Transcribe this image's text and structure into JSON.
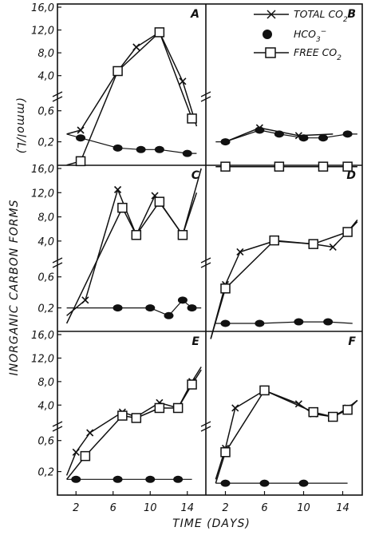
{
  "figure": {
    "ylabel": "INORGANIC CARBON FORMS",
    "yunit": "(mmol/L)",
    "xlabel": "TIME (DAYS)"
  },
  "legend": {
    "total": "TOTAL CO",
    "total_sub": "2",
    "hco3": "HCO",
    "hco3_sub": "3",
    "hco3_sup": "−",
    "free": "FREE CO",
    "free_sub": "2"
  },
  "colors": {
    "ink": "#111111",
    "background": "#ffffff"
  },
  "chart_data": [
    {
      "panel": "A",
      "type": "line",
      "yticks_upper": [
        "4,0",
        "8,0",
        "12,0",
        "16,0"
      ],
      "yticks_lower": [
        "0,2",
        "0,6"
      ],
      "xticks": [
        "2",
        "6",
        "10",
        "14"
      ],
      "series": [
        {
          "name": "TOTAL CO2",
          "x": [
            1,
            2.5,
            6.5,
            8.5,
            11,
            13.5,
            15
          ],
          "y": [
            0.3,
            0.35,
            4.8,
            9.0,
            11.6,
            3.0,
            0.4
          ]
        },
        {
          "name": "HCO3-",
          "x": [
            1,
            2.5,
            6.5,
            9,
            11,
            14,
            15
          ],
          "y": [
            0.3,
            0.25,
            0.12,
            0.1,
            0.1,
            0.05,
            0.05
          ]
        },
        {
          "name": "FREE CO2",
          "x": [
            1,
            2.5,
            6.5,
            11,
            14.5,
            15
          ],
          "y": [
            -0.1,
            -0.05,
            4.8,
            11.6,
            0.5,
            0.45
          ]
        }
      ]
    },
    {
      "panel": "B",
      "type": "line",
      "yticks_upper": [],
      "yticks_lower": [],
      "xticks": [
        "2",
        "6",
        "10",
        "14"
      ],
      "series": [
        {
          "name": "TOTAL CO2",
          "x": [
            2,
            5.5,
            9.5,
            13
          ],
          "y": [
            0.2,
            0.38,
            0.28,
            0.3
          ]
        },
        {
          "name": "HCO3-",
          "x": [
            1,
            2,
            5.5,
            7.5,
            10,
            12,
            14.5,
            15.5
          ],
          "y": [
            0.2,
            0.2,
            0.35,
            0.3,
            0.25,
            0.25,
            0.3,
            0.3
          ]
        },
        {
          "name": "FREE CO2",
          "x": [
            1,
            2,
            7.5,
            12,
            14.5,
            15.5
          ],
          "y": [
            -0.12,
            -0.12,
            -0.12,
            -0.12,
            -0.12,
            -0.12
          ]
        }
      ]
    },
    {
      "panel": "C",
      "type": "line",
      "yticks_upper": [
        "4,0",
        "8,0",
        "12,0",
        "16,0"
      ],
      "yticks_lower": [
        "0,2",
        "0,6"
      ],
      "xticks": [
        "2",
        "6",
        "10",
        "14"
      ],
      "series": [
        {
          "name": "TOTAL CO2",
          "x": [
            1,
            3,
            6.5,
            8.5,
            10.5,
            13.5,
            15.5
          ],
          "y": [
            0.1,
            0.3,
            12.5,
            5.0,
            11.5,
            5.0,
            16.0
          ]
        },
        {
          "name": "HCO3-",
          "x": [
            1,
            6.5,
            10,
            12,
            13.5,
            14.5,
            15.5
          ],
          "y": [
            0.2,
            0.2,
            0.2,
            0.1,
            0.3,
            0.2,
            0.2
          ]
        },
        {
          "name": "FREE CO2",
          "x": [
            1,
            7,
            8.5,
            11,
            13.5,
            15
          ],
          "y": [
            0.0,
            9.5,
            5.0,
            10.5,
            5.0,
            12.0
          ]
        }
      ]
    },
    {
      "panel": "D",
      "type": "line",
      "yticks_upper": [],
      "yticks_lower": [],
      "xticks": [
        "2",
        "6",
        "10",
        "14"
      ],
      "series": [
        {
          "name": "TOTAL CO2",
          "x": [
            0.5,
            2,
            3.5,
            7,
            11,
            13,
            14.5,
            15.5
          ],
          "y": [
            -0.2,
            0.5,
            2.2,
            4.0,
            3.5,
            3.0,
            5.5,
            7.5
          ]
        },
        {
          "name": "HCO3-",
          "x": [
            1,
            2,
            5.5,
            9.5,
            12.5,
            15
          ],
          "y": [
            0.0,
            0.0,
            0.0,
            0.02,
            0.02,
            0.0
          ]
        },
        {
          "name": "FREE CO2",
          "x": [
            0.5,
            2,
            7,
            11,
            14.5,
            15.5
          ],
          "y": [
            -0.2,
            0.45,
            4.1,
            3.5,
            5.5,
            7.2
          ]
        }
      ]
    },
    {
      "panel": "E",
      "type": "line",
      "yticks_upper": [
        "4,0",
        "8,0",
        "12,0",
        "16,0"
      ],
      "yticks_lower": [
        "0,2",
        "0,6"
      ],
      "xticks": [
        "2",
        "6",
        "10",
        "14"
      ],
      "series": [
        {
          "name": "TOTAL CO2",
          "x": [
            1,
            2,
            3.5,
            7,
            8.5,
            11,
            13,
            14.5,
            15.5
          ],
          "y": [
            0.15,
            0.45,
            0.7,
            2.8,
            2.0,
            4.4,
            3.5,
            8.0,
            10.5
          ]
        },
        {
          "name": "HCO3-",
          "x": [
            1,
            2,
            6.5,
            10,
            13,
            14.5
          ],
          "y": [
            0.1,
            0.1,
            0.1,
            0.1,
            0.1,
            0.1
          ]
        },
        {
          "name": "FREE CO2",
          "x": [
            1,
            3,
            7,
            8.5,
            11,
            13,
            14.5,
            15.5
          ],
          "y": [
            0.1,
            0.4,
            2.2,
            1.8,
            3.5,
            3.5,
            7.5,
            10.0
          ]
        }
      ]
    },
    {
      "panel": "F",
      "type": "line",
      "yticks_upper": [],
      "yticks_lower": [],
      "xticks": [
        "2",
        "6",
        "10",
        "14"
      ],
      "series": [
        {
          "name": "TOTAL CO2",
          "x": [
            1,
            2,
            3,
            6,
            9.5,
            11,
            13,
            14.5,
            15.5
          ],
          "y": [
            0.1,
            0.5,
            3.5,
            6.5,
            4.2,
            2.5,
            2.0,
            3.5,
            4.8
          ]
        },
        {
          "name": "HCO3-",
          "x": [
            1,
            2,
            6,
            10,
            14.5
          ],
          "y": [
            0.05,
            0.05,
            0.05,
            0.05,
            0.05
          ]
        },
        {
          "name": "FREE CO2",
          "x": [
            1,
            2,
            6,
            11,
            13,
            14.5,
            15.5
          ],
          "y": [
            0.05,
            0.45,
            6.5,
            2.8,
            2.0,
            3.2,
            4.8
          ]
        }
      ]
    }
  ]
}
